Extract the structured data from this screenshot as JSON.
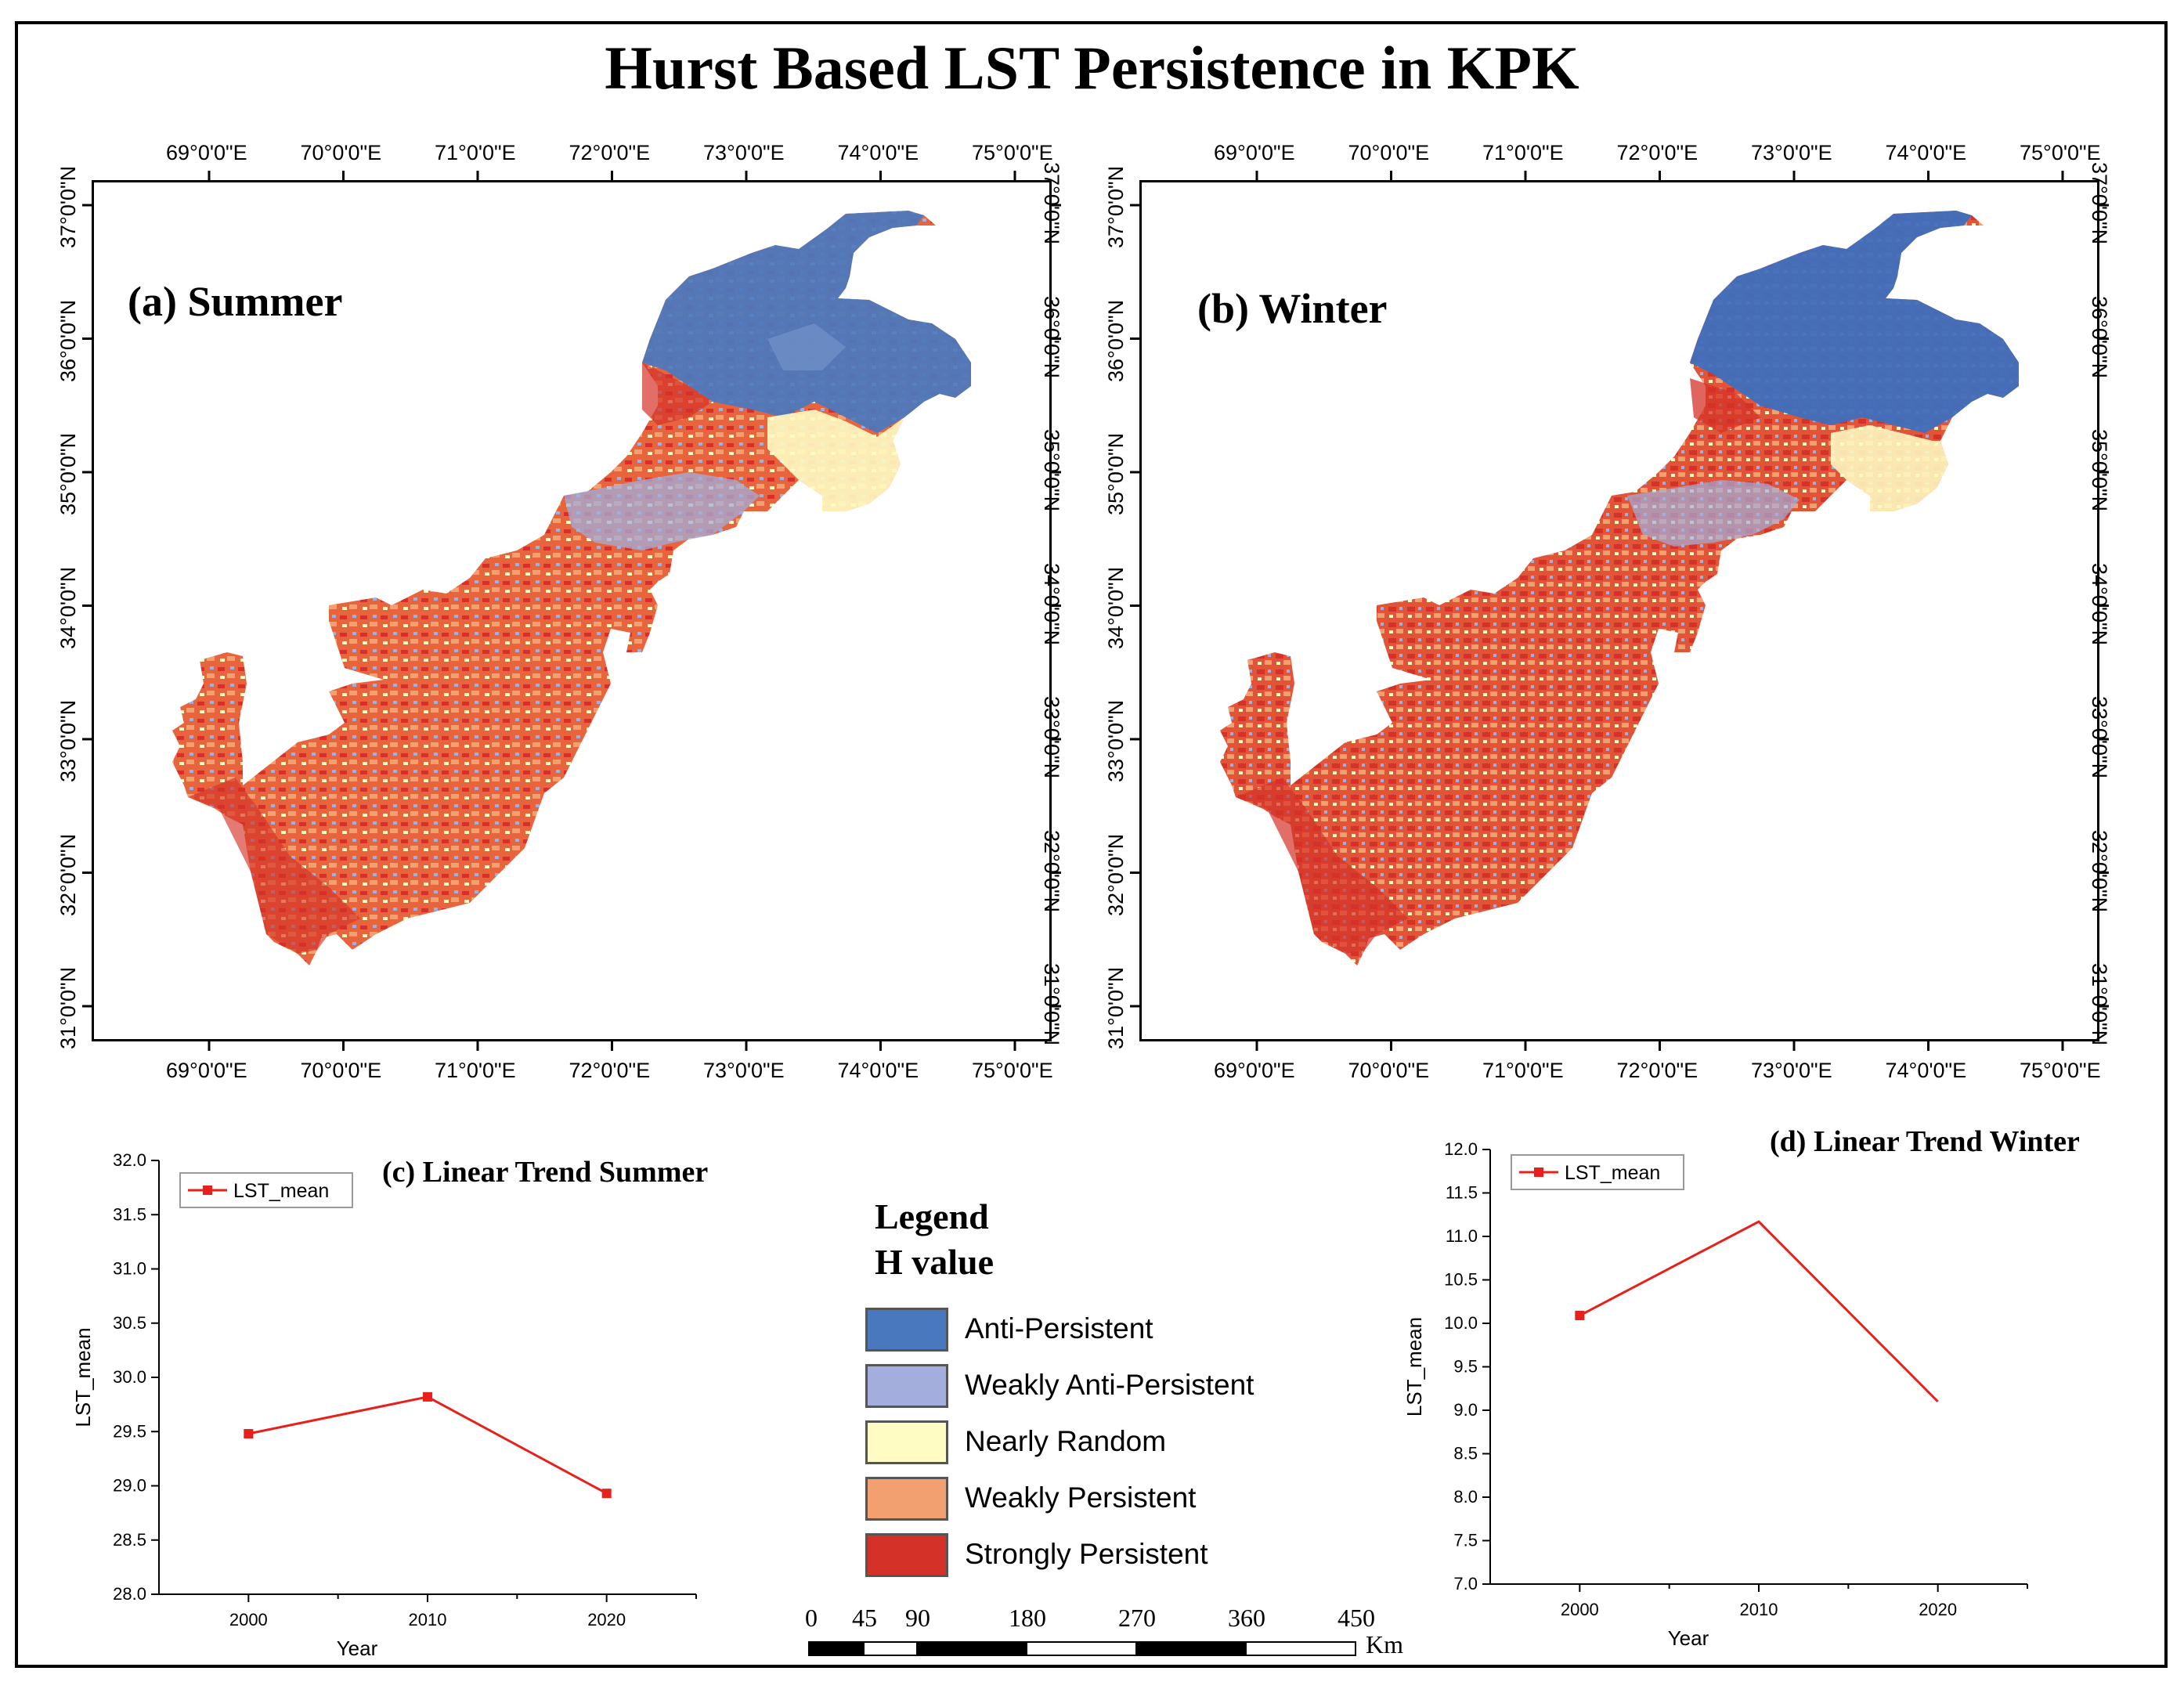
{
  "title": "Hurst Based LST Persistence in KPK",
  "map_axes": {
    "lon_labels": [
      "69°0'0\"E",
      "70°0'0\"E",
      "71°0'0\"E",
      "72°0'0\"E",
      "73°0'0\"E",
      "74°0'0\"E",
      "75°0'0\"E"
    ],
    "lat_labels": [
      "37°0'0\"N",
      "36°0'0\"N",
      "35°0'0\"N",
      "34°0'0\"N",
      "33°0'0\"N",
      "32°0'0\"N",
      "31°0'0\"N"
    ]
  },
  "panels": {
    "summer_map_label": "(a) Summer",
    "winter_map_label": "(b) Winter",
    "summer_chart_label": "(c) Linear Trend Summer",
    "winter_chart_label": "(d) Linear Trend Winter"
  },
  "legend": {
    "title": "Legend",
    "subtitle": "H value",
    "items": [
      {
        "label": "Anti-Persistent",
        "color": "#4a78be"
      },
      {
        "label": "Weakly Anti-Persistent",
        "color": "#a3aedc"
      },
      {
        "label": "Nearly Random",
        "color": "#fefcc3"
      },
      {
        "label": "Weakly Persistent",
        "color": "#f3a070"
      },
      {
        "label": "Strongly Persistent",
        "color": "#d43228"
      }
    ]
  },
  "scalebar": {
    "ticks": [
      "0",
      "45",
      "90",
      "180",
      "270",
      "360",
      "450"
    ],
    "unit": "Km"
  },
  "chart_data": [
    {
      "type": "line",
      "title": "(c) Linear Trend Summer",
      "x": [
        2000,
        2010,
        2020
      ],
      "series": [
        {
          "name": "LST_mean",
          "values": [
            29.48,
            29.82,
            28.93
          ],
          "color": "#e8201c"
        }
      ],
      "xlabel": "Year",
      "ylabel": "LST_mean",
      "ylim": [
        28.0,
        32.0
      ],
      "yticks": [
        "28.0",
        "28.5",
        "29.0",
        "29.5",
        "30.0",
        "30.5",
        "31.0",
        "31.5",
        "32.0"
      ],
      "xticks": [
        "2000",
        "2010",
        "2020"
      ],
      "legend": "top-left"
    },
    {
      "type": "line",
      "title": "(d) Linear Trend Winter",
      "x": [
        2000,
        2010,
        2020
      ],
      "series": [
        {
          "name": "LST_mean",
          "values": [
            10.09,
            11.17,
            9.1
          ],
          "color": "#e8201c"
        }
      ],
      "xlabel": "Year",
      "ylabel": "LST_mean",
      "ylim": [
        7.0,
        12.0
      ],
      "yticks": [
        "7.0",
        "7.5",
        "8.0",
        "8.5",
        "9.0",
        "9.5",
        "10.0",
        "10.5",
        "11.0",
        "11.5",
        "12.0"
      ],
      "xticks": [
        "2000",
        "2010",
        "2020"
      ],
      "legend": "top-left"
    }
  ]
}
